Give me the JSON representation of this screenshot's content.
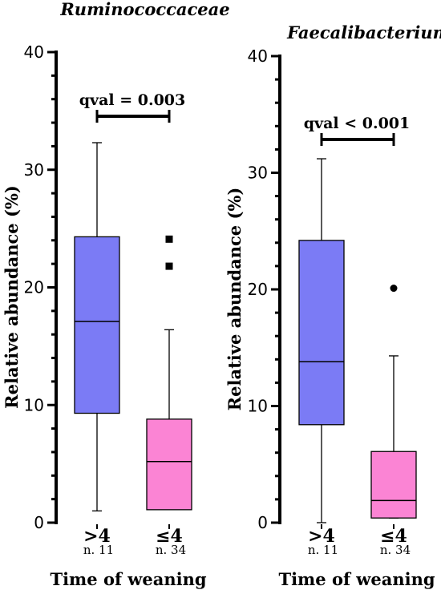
{
  "chart_data": [
    {
      "type": "box",
      "title": "Ruminococcaceae",
      "ylabel": "Relative abundance (%)",
      "xlabel": "Time of weaning",
      "ylim": [
        0,
        40
      ],
      "yticks": [
        0,
        10,
        20,
        30,
        40
      ],
      "significance": "qval = 0.003",
      "groups": [
        {
          "label": ">4",
          "n": "n. 11",
          "color": "#7b7bf5",
          "min": 1,
          "q1": 9.3,
          "median": 17.1,
          "q3": 24.3,
          "max": 32.3,
          "outliers": []
        },
        {
          "label": "≤4",
          "n": "n. 34",
          "color": "#fb84d4",
          "min": 1.1,
          "q1": 1.1,
          "median": 5.2,
          "q3": 8.8,
          "max": 16.4,
          "outliers": [
            21.8,
            24.1
          ],
          "outlier_marker": "square"
        }
      ]
    },
    {
      "type": "box",
      "title": "Faecalibacterium",
      "ylabel": "Relative abundance (%)",
      "xlabel": "Time of weaning",
      "ylim": [
        0,
        40
      ],
      "yticks": [
        0,
        10,
        20,
        30,
        40
      ],
      "significance": "qval < 0.001",
      "groups": [
        {
          "label": ">4",
          "n": "n. 11",
          "color": "#7b7bf5",
          "min": 0,
          "q1": 8.4,
          "median": 13.8,
          "q3": 24.2,
          "max": 31.2,
          "outliers": []
        },
        {
          "label": "≤4",
          "n": "n. 34",
          "color": "#fb84d4",
          "min": 0.4,
          "q1": 0.4,
          "median": 1.9,
          "q3": 6.1,
          "max": 14.3,
          "outliers": [
            20.1
          ],
          "outlier_marker": "circle"
        }
      ]
    }
  ]
}
